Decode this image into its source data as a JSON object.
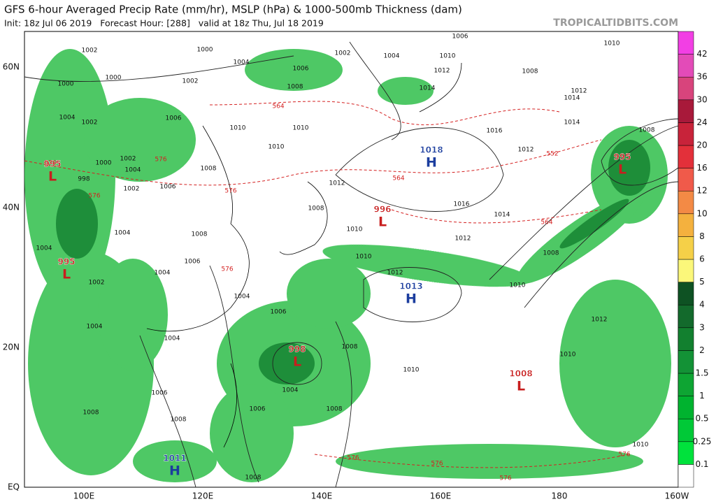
{
  "header": {
    "title": "GFS 6-hour Averaged Precip Rate (mm/hr), MSLP (hPa) & 1000-500mb Thickness (dam)",
    "subtitle": "Init: 18z Jul 06 2019   Forecast Hour: [288]   valid at 18z Thu, Jul 18 2019",
    "site": "TROPICALTIDBITS.COM"
  },
  "axes": {
    "lat_labels": [
      "60N",
      "40N",
      "20N",
      "EQ"
    ],
    "lon_labels": [
      "100E",
      "120E",
      "140E",
      "160E",
      "180",
      "160W"
    ]
  },
  "colorbar": {
    "levels": [
      0.1,
      0.25,
      0.5,
      1,
      1.5,
      2,
      3,
      4,
      5,
      6,
      8,
      10,
      12,
      16,
      20,
      24,
      30,
      36,
      42
    ],
    "colors": [
      "#ffffff",
      "#00e23c",
      "#00c937",
      "#00b32f",
      "#0ea533",
      "#139236",
      "#12802f",
      "#136a2c",
      "#0e5223",
      "#fbf77a",
      "#f5d048",
      "#f4b13e",
      "#f38a45",
      "#f05a4a",
      "#e3303a",
      "#c8233a",
      "#a8193a",
      "#d8447c",
      "#e34bb8",
      "#f23fe4"
    ]
  },
  "pressure_centers": [
    {
      "kind": "L",
      "value": 995
    },
    {
      "kind": "L",
      "value": 995
    },
    {
      "kind": "L",
      "value": 996
    },
    {
      "kind": "H",
      "value": 1018
    },
    {
      "kind": "H",
      "value": 1013
    },
    {
      "kind": "L",
      "value": 998
    },
    {
      "kind": "L",
      "value": 1008
    },
    {
      "kind": "L",
      "value": 995
    },
    {
      "kind": "H",
      "value": 1011
    }
  ],
  "isobar_labels": [
    1002,
    1000,
    1004,
    1006,
    1002,
    1000,
    1008,
    1006,
    1002,
    1004,
    1010,
    1012,
    1014,
    1008,
    1010,
    1012,
    1014,
    1016,
    1014,
    1012,
    1008,
    1016,
    1014,
    1012,
    1010,
    1012,
    1008,
    1010,
    1012,
    1010,
    1012,
    1010,
    1010,
    1008,
    1006,
    1004,
    1004,
    1006,
    1008,
    1008,
    1006,
    1004,
    1004,
    1006,
    1008,
    1004,
    1004,
    1002,
    1004,
    1008,
    1006,
    1008,
    1010,
    1010,
    1010,
    1004,
    1002,
    1000,
    998,
    1002,
    1004,
    1002,
    1000,
    1006,
    1008,
    1010,
    1008
  ],
  "thickness_labels": [
    564,
    576,
    576,
    576,
    564,
    552,
    564,
    576,
    576,
    576,
    576,
    576,
    576
  ]
}
